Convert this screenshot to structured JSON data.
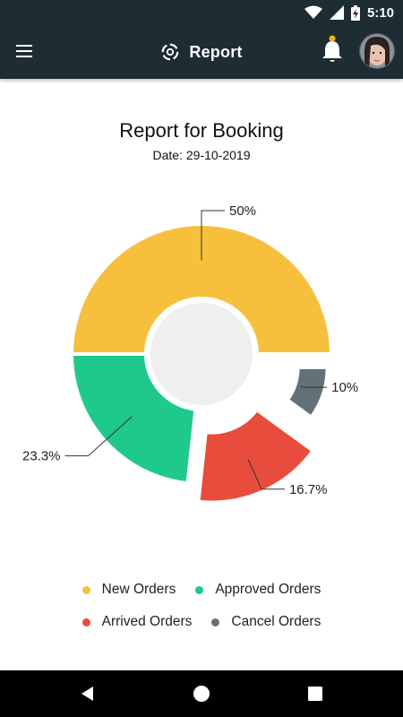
{
  "status_bar": {
    "time": "5:10",
    "icons": [
      "wifi-icon",
      "signal-icon",
      "battery-charging-icon"
    ]
  },
  "app_bar": {
    "title": "Report",
    "icons": [
      "menu-icon",
      "logo-icon",
      "bell-icon",
      "avatar"
    ],
    "notification_dot_color": "#f2b01e"
  },
  "header": {
    "title": "Report for Booking",
    "date": "Date: 29-10-2019"
  },
  "chart_data": {
    "type": "pie",
    "variant": "donut-exploded",
    "categories": [
      "New Orders",
      "Approved Orders",
      "Arrived Orders",
      "Cancel Orders"
    ],
    "values": [
      50,
      23.3,
      16.7,
      10
    ],
    "labels": [
      "50%",
      "23.3%",
      "16.7%",
      "10%"
    ],
    "colors": [
      "#f6c03c",
      "#1fc98c",
      "#e84c3d",
      "#627178"
    ],
    "legend": "bottom"
  },
  "nav_bar": {
    "icons": [
      "back-icon",
      "home-icon",
      "recents-icon"
    ]
  }
}
